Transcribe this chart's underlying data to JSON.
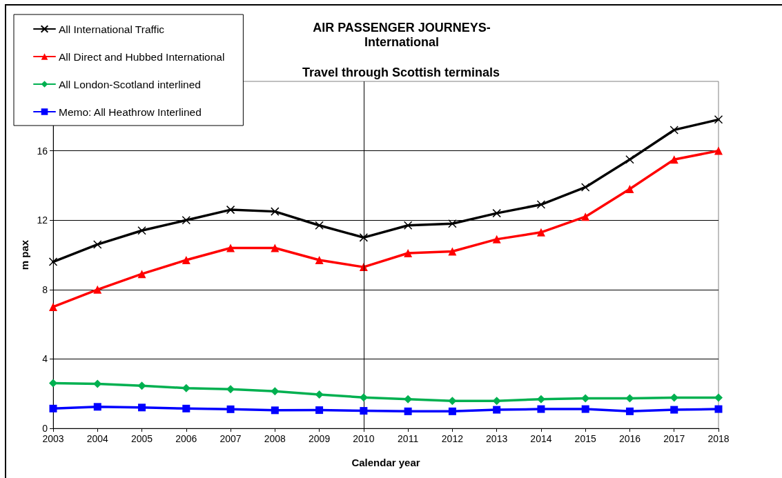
{
  "chart_data": {
    "type": "line",
    "title": "AIR PASSENGER JOURNEYS-\nInternational",
    "subtitle": "Travel through Scottish terminals",
    "xlabel": "Calendar year",
    "ylabel": "m pax",
    "x": [
      2003,
      2004,
      2005,
      2006,
      2007,
      2008,
      2009,
      2010,
      2011,
      2012,
      2013,
      2014,
      2015,
      2016,
      2017,
      2018
    ],
    "series": [
      {
        "name": "All International Traffic",
        "color": "#000000",
        "marker": "cross",
        "values": [
          9.6,
          10.6,
          11.4,
          12.0,
          12.6,
          12.5,
          11.7,
          11.0,
          11.7,
          11.8,
          12.4,
          12.9,
          13.9,
          15.5,
          17.2,
          17.8
        ]
      },
      {
        "name": "All Direct and Hubbed International",
        "color": "#ff0000",
        "marker": "triangle",
        "values": [
          7.0,
          8.0,
          8.9,
          9.7,
          10.4,
          10.4,
          9.7,
          9.3,
          10.1,
          10.2,
          10.9,
          11.3,
          12.2,
          13.8,
          15.5,
          16.0
        ]
      },
      {
        "name": "All London-Scotland interlined",
        "color": "#00b050",
        "marker": "diamond",
        "values": [
          2.6,
          2.56,
          2.46,
          2.32,
          2.26,
          2.14,
          1.95,
          1.78,
          1.68,
          1.58,
          1.58,
          1.68,
          1.73,
          1.73,
          1.77,
          1.77
        ]
      },
      {
        "name": "Memo: All Heathrow Interlined",
        "color": "#0000ff",
        "marker": "square",
        "values": [
          1.14,
          1.24,
          1.2,
          1.14,
          1.1,
          1.04,
          1.05,
          1.01,
          0.98,
          0.98,
          1.07,
          1.11,
          1.11,
          0.98,
          1.07,
          1.11
        ]
      }
    ],
    "xlim": [
      2003,
      2018
    ],
    "xticks": [
      2003,
      2004,
      2005,
      2006,
      2007,
      2008,
      2009,
      2010,
      2011,
      2012,
      2013,
      2014,
      2015,
      2016,
      2017,
      2018
    ],
    "ylim": [
      0,
      20
    ],
    "yticks": [
      0,
      4,
      8,
      12,
      16
    ],
    "ref_lines": [
      {
        "axis": "x",
        "value": 2010,
        "color": "#000000"
      }
    ],
    "grid": "y",
    "legend": "top left",
    "line_style": "solid"
  }
}
